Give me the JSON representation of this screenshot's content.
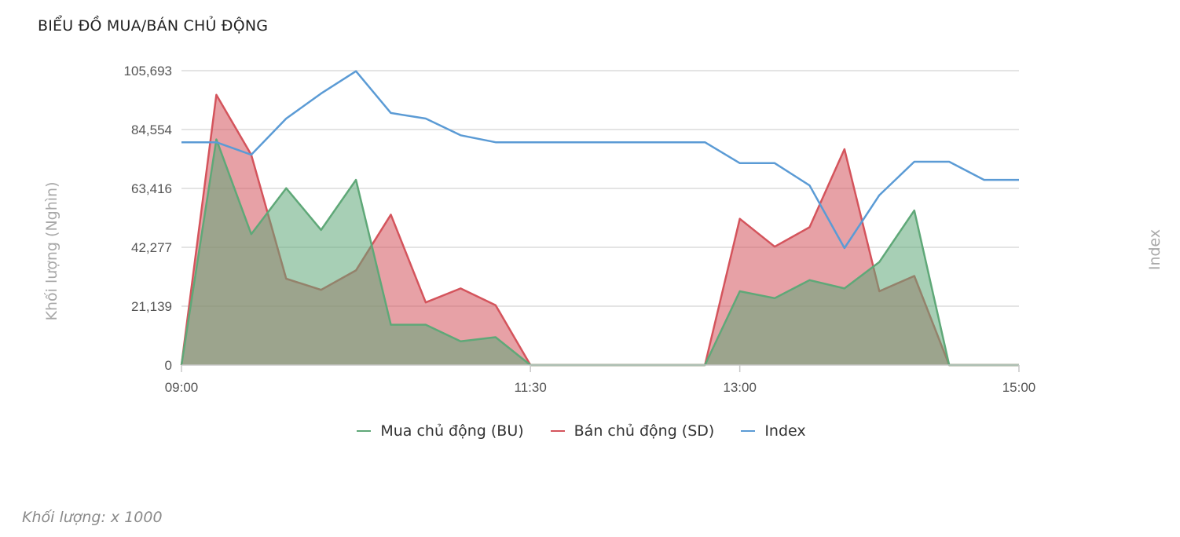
{
  "header": {
    "title": "BIỂU ĐỒ MUA/BÁN CHỦ ĐỘNG"
  },
  "footnote": "Khối lượng: x 1000",
  "chart_data": {
    "type": "area",
    "title": "BIỂU ĐỒ MUA/BÁN CHỦ ĐỘNG",
    "ylabel": "Khối lượng (Nghìn)",
    "y2label": "Index",
    "ylim": [
      0,
      105693
    ],
    "yticks": [
      "105,693",
      "84,554",
      "63,416",
      "42,277",
      "21,139",
      "0"
    ],
    "ytick_values": [
      105693,
      84554,
      63416,
      42277,
      21139,
      0
    ],
    "xlim": [
      "09:00",
      "15:00"
    ],
    "xticks": [
      "09:00",
      "11:30",
      "13:00",
      "15:00"
    ],
    "x": [
      "09:00",
      "09:15",
      "09:30",
      "09:45",
      "10:00",
      "10:15",
      "10:30",
      "10:45",
      "11:00",
      "11:15",
      "11:30",
      "11:45",
      "12:00",
      "12:15",
      "12:30",
      "12:45",
      "13:00",
      "13:15",
      "13:30",
      "13:45",
      "14:00",
      "14:15",
      "14:30",
      "14:45",
      "15:00"
    ],
    "grid": true,
    "legend": "bottom",
    "colors": {
      "buy": "#5fa878",
      "sell": "#d4545c",
      "index": "#5b9bd5"
    },
    "series": [
      {
        "name": "Mua chủ động (BU)",
        "key": "buy",
        "values": [
          0,
          81000,
          47000,
          63500,
          48500,
          66500,
          14500,
          14500,
          8500,
          10000,
          0,
          0,
          0,
          0,
          0,
          0,
          26500,
          24000,
          30500,
          27500,
          37000,
          55500,
          0,
          0,
          0
        ]
      },
      {
        "name": "Bán chủ động (SD)",
        "key": "sell",
        "values": [
          0,
          97000,
          75500,
          31000,
          27000,
          34000,
          54000,
          22500,
          27500,
          21500,
          0,
          0,
          0,
          0,
          0,
          0,
          52500,
          42500,
          49500,
          77500,
          26500,
          32000,
          0,
          0,
          0
        ]
      },
      {
        "name": "Index",
        "key": "index",
        "values": [
          80000,
          80000,
          75500,
          88500,
          97500,
          105500,
          90500,
          88500,
          82500,
          80000,
          80000,
          80000,
          80000,
          80000,
          80000,
          80000,
          72500,
          72500,
          64500,
          42000,
          61000,
          73000,
          73000,
          66500,
          66500
        ]
      }
    ]
  }
}
